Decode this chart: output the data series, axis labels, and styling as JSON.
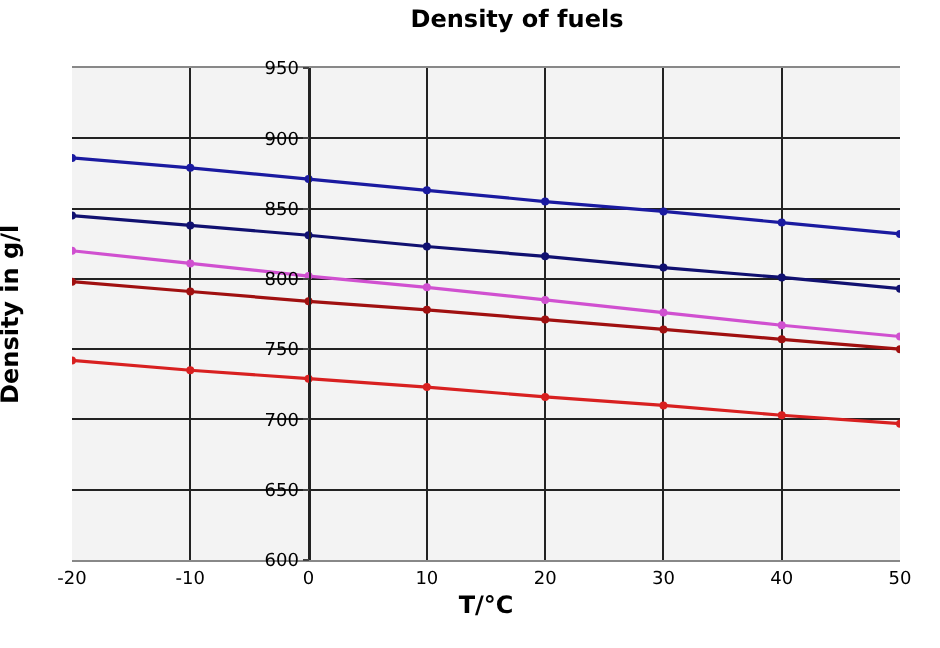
{
  "chart_data": {
    "type": "line",
    "title": "Density of fuels",
    "xlabel": "T/°C",
    "ylabel": "Density in g/l",
    "x": [
      -20,
      -10,
      0,
      10,
      20,
      30,
      40,
      50
    ],
    "series": [
      {
        "color": "#1a1aa0",
        "values": [
          886,
          879,
          871,
          863,
          855,
          848,
          840,
          832
        ]
      },
      {
        "color": "#101070",
        "values": [
          845,
          838,
          831,
          823,
          816,
          808,
          801,
          793
        ]
      },
      {
        "color": "#d050d0",
        "values": [
          820,
          811,
          802,
          794,
          785,
          776,
          767,
          759
        ]
      },
      {
        "color": "#a01010",
        "values": [
          798,
          791,
          784,
          778,
          771,
          764,
          757,
          750
        ]
      },
      {
        "color": "#d82020",
        "values": [
          742,
          735,
          729,
          723,
          716,
          710,
          703,
          697
        ]
      }
    ],
    "xlim": [
      -20,
      50
    ],
    "xticks": [
      -20,
      -10,
      0,
      10,
      20,
      30,
      40,
      50
    ],
    "ylim": [
      600,
      950
    ],
    "yticks": [
      600,
      650,
      700,
      750,
      800,
      850,
      900,
      950
    ],
    "grid": true,
    "marker": "circle",
    "line_style": "solid"
  }
}
